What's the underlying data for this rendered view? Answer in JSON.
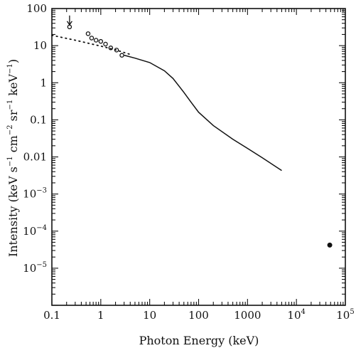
{
  "chart_data": {
    "type": "line",
    "xlabel": "Photon Energy (keV)",
    "ylabel": {
      "parts": [
        {
          "text": "Intensity (keV s",
          "sup": false
        },
        {
          "text": "−1",
          "sup": true
        },
        {
          "text": " cm",
          "sup": false
        },
        {
          "text": "−2",
          "sup": true
        },
        {
          "text": " sr",
          "sup": false
        },
        {
          "text": "−1",
          "sup": true
        },
        {
          "text": " keV",
          "sup": false
        },
        {
          "text": "−1",
          "sup": true
        },
        {
          "text": ")",
          "sup": false
        }
      ]
    },
    "x_scale": "log",
    "y_scale": "log",
    "xlim": [
      0.1,
      100000
    ],
    "ylim": [
      1e-06,
      100
    ],
    "grid": false,
    "x_ticks": [
      {
        "value": 0.1,
        "base": "0.1",
        "exp": ""
      },
      {
        "value": 1,
        "base": "1",
        "exp": ""
      },
      {
        "value": 10,
        "base": "10",
        "exp": ""
      },
      {
        "value": 100,
        "base": "100",
        "exp": ""
      },
      {
        "value": 1000,
        "base": "1000",
        "exp": ""
      },
      {
        "value": 10000,
        "base": "10",
        "exp": "4"
      },
      {
        "value": 100000,
        "base": "10",
        "exp": "5"
      }
    ],
    "y_ticks": [
      {
        "value": 100,
        "base": "100",
        "exp": ""
      },
      {
        "value": 10,
        "base": "10",
        "exp": ""
      },
      {
        "value": 1,
        "base": "1",
        "exp": ""
      },
      {
        "value": 0.1,
        "base": "0.1",
        "exp": ""
      },
      {
        "value": 0.01,
        "base": "0.01",
        "exp": ""
      },
      {
        "value": 0.001,
        "base": "10",
        "exp": "−3"
      },
      {
        "value": 0.0001,
        "base": "10",
        "exp": "−4"
      },
      {
        "value": 1e-05,
        "base": "10",
        "exp": "−5"
      }
    ],
    "series": [
      {
        "style": "solid",
        "points": [
          [
            3,
            5.5
          ],
          [
            5,
            4.6
          ],
          [
            10,
            3.5
          ],
          [
            20,
            2.1
          ],
          [
            30,
            1.3
          ],
          [
            50,
            0.55
          ],
          [
            70,
            0.3
          ],
          [
            100,
            0.16
          ],
          [
            200,
            0.07
          ],
          [
            500,
            0.03
          ],
          [
            1000,
            0.017
          ],
          [
            2000,
            0.0095
          ],
          [
            5000,
            0.0043
          ]
        ]
      },
      {
        "style": "dotted",
        "points": [
          [
            0.1,
            19
          ],
          [
            0.3,
            14
          ],
          [
            0.5,
            12
          ],
          [
            1,
            9.7
          ],
          [
            2,
            7.7
          ],
          [
            4,
            5.8
          ]
        ]
      },
      {
        "style": "circles",
        "points": [
          [
            0.55,
            21
          ],
          [
            0.65,
            16
          ],
          [
            0.8,
            14
          ],
          [
            1.0,
            13
          ],
          [
            1.25,
            11
          ],
          [
            1.6,
            8.7
          ],
          [
            2.1,
            7.6
          ],
          [
            2.7,
            5.5
          ]
        ]
      },
      {
        "style": "filled-dot",
        "points": [
          [
            48000,
            4.2e-05
          ]
        ]
      }
    ],
    "upper_limit": {
      "x": 0.23,
      "y": 32
    }
  }
}
